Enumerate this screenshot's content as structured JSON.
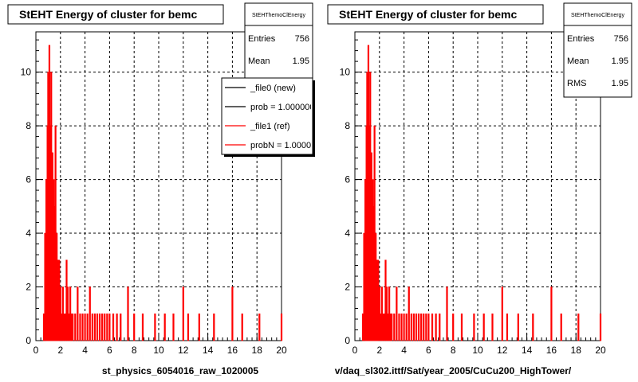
{
  "chart_data": [
    {
      "type": "bar",
      "title": "StEHT Energy of cluster for bemc",
      "xlabel": "st_physics_6054016_raw_1020005",
      "ylabel": "",
      "xlim": [
        0,
        20
      ],
      "ylim": [
        0,
        11.5
      ],
      "x_ticks": [
        "0",
        "2",
        "4",
        "6",
        "8",
        "10",
        "12",
        "14",
        "16",
        "18",
        "20"
      ],
      "y_ticks": [
        "0",
        "2",
        "4",
        "6",
        "8",
        "10"
      ],
      "grid": true,
      "stats": {
        "name": "StEHThemoClEnergy",
        "entries_label": "Entries",
        "entries": "756",
        "mean_label": "Mean",
        "mean": "1.95"
      },
      "legend": [
        "_file0 (new)",
        "prob = 1.000000",
        "_file1 (ref)",
        "probN = 1.000000"
      ],
      "legend_colors": [
        "#000000",
        "#000000",
        "#ff0000",
        "#ff0000"
      ],
      "series": [
        {
          "color": "#ff0000",
          "x": [
            0.65,
            0.75,
            0.85,
            0.9,
            0.95,
            1.0,
            1.05,
            1.1,
            1.15,
            1.2,
            1.25,
            1.3,
            1.35,
            1.4,
            1.45,
            1.5,
            1.55,
            1.6,
            1.65,
            1.7,
            1.75,
            1.8,
            1.85,
            1.9,
            2.0,
            2.1,
            2.2,
            2.3,
            2.4,
            2.5,
            2.6,
            2.7,
            2.8,
            2.9,
            3.0,
            3.2,
            3.4,
            3.6,
            3.8,
            4.0,
            4.2,
            4.4,
            4.6,
            4.8,
            5.0,
            5.2,
            5.4,
            5.6,
            5.8,
            6.0,
            6.3,
            6.6,
            6.9,
            7.5,
            8.0,
            8.7,
            9.7,
            10.5,
            11.2,
            12.0,
            12.4,
            13.3,
            14.5,
            16.0,
            16.8,
            18.2,
            20.0
          ],
          "y": [
            1,
            4,
            6,
            5,
            8,
            10,
            9,
            11,
            7,
            8,
            10,
            6,
            7,
            5,
            6,
            4,
            5,
            8,
            3,
            4,
            2,
            3,
            2,
            3,
            2,
            1,
            2,
            1,
            1,
            3,
            2,
            1,
            2,
            1,
            1,
            1,
            2,
            1,
            1,
            1,
            1,
            2,
            1,
            1,
            1,
            1,
            1,
            1,
            1,
            1,
            1,
            1,
            1,
            2,
            1,
            1,
            1,
            1,
            1,
            2,
            1,
            1,
            1,
            2,
            1,
            1,
            1
          ]
        }
      ]
    },
    {
      "type": "bar",
      "title": "StEHT Energy of cluster for bemc",
      "xlabel": "v/daq_sl302.ittf/Sat/year_2005/CuCu200_HighTower/",
      "ylabel": "",
      "xlim": [
        0,
        20
      ],
      "ylim": [
        0,
        11.5
      ],
      "x_ticks": [
        "0",
        "2",
        "4",
        "6",
        "8",
        "10",
        "12",
        "14",
        "16",
        "18",
        "20"
      ],
      "y_ticks": [
        "0",
        "2",
        "4",
        "6",
        "8",
        "10"
      ],
      "grid": true,
      "stats": {
        "name": "StEHThemoClEnergy",
        "entries_label": "Entries",
        "entries": "756",
        "mean_label": "Mean",
        "mean": "1.95",
        "rms_label": "RMS",
        "rms": "1.95"
      },
      "series": [
        {
          "color": "#ff0000",
          "x": [
            0.65,
            0.75,
            0.85,
            0.9,
            0.95,
            1.0,
            1.05,
            1.1,
            1.15,
            1.2,
            1.25,
            1.3,
            1.35,
            1.4,
            1.45,
            1.5,
            1.55,
            1.6,
            1.65,
            1.7,
            1.75,
            1.8,
            1.85,
            1.9,
            2.0,
            2.1,
            2.2,
            2.3,
            2.4,
            2.5,
            2.6,
            2.7,
            2.8,
            2.9,
            3.0,
            3.2,
            3.4,
            3.6,
            3.8,
            4.0,
            4.2,
            4.4,
            4.6,
            4.8,
            5.0,
            5.2,
            5.4,
            5.6,
            5.8,
            6.0,
            6.3,
            6.6,
            6.9,
            7.5,
            8.0,
            8.7,
            9.7,
            10.5,
            11.2,
            12.0,
            12.4,
            13.3,
            14.5,
            16.0,
            16.8,
            18.2,
            20.0
          ],
          "y": [
            1,
            4,
            6,
            5,
            8,
            10,
            9,
            11,
            7,
            8,
            10,
            6,
            7,
            5,
            6,
            4,
            5,
            8,
            3,
            4,
            2,
            3,
            2,
            3,
            2,
            1,
            2,
            1,
            1,
            3,
            2,
            1,
            2,
            1,
            1,
            1,
            2,
            1,
            1,
            1,
            1,
            2,
            1,
            1,
            1,
            1,
            1,
            1,
            1,
            1,
            1,
            1,
            1,
            2,
            1,
            1,
            1,
            1,
            1,
            2,
            1,
            1,
            1,
            2,
            1,
            1,
            1
          ]
        }
      ]
    }
  ]
}
